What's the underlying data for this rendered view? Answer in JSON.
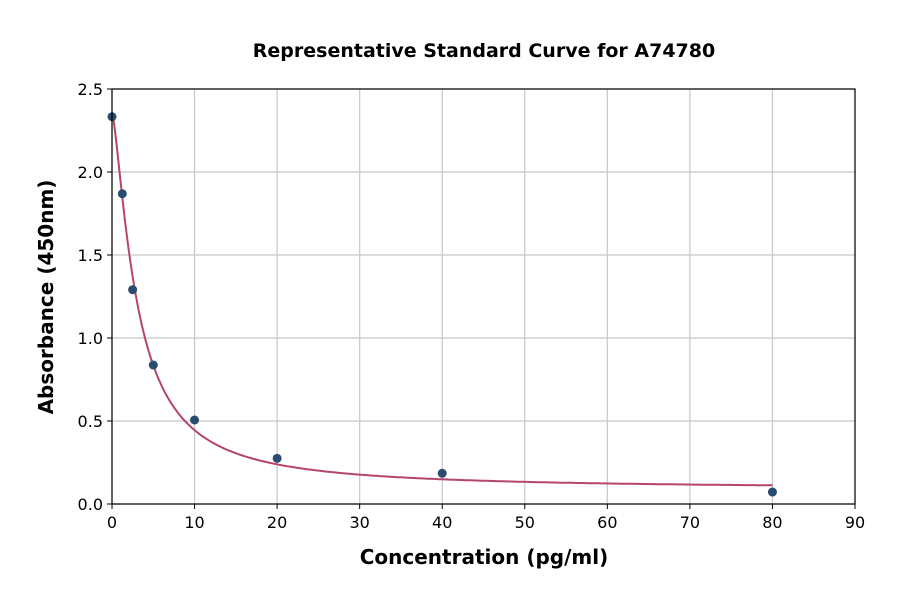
{
  "chart_data": {
    "type": "scatter",
    "title": "Representative Standard Curve for A74780",
    "xlabel": "Concentration (pg/ml)",
    "ylabel": "Absorbance (450nm)",
    "xlim": [
      0,
      90
    ],
    "ylim": [
      0,
      2.5
    ],
    "xticks": [
      "0",
      "10",
      "20",
      "30",
      "40",
      "50",
      "60",
      "70",
      "80",
      "90"
    ],
    "yticks": [
      "0.0",
      "0.5",
      "1.0",
      "1.5",
      "2.0",
      "2.5"
    ],
    "grid": true,
    "points": [
      {
        "x": 0,
        "y": 2.333
      },
      {
        "x": 1.25,
        "y": 1.869
      },
      {
        "x": 2.5,
        "y": 1.291
      },
      {
        "x": 5,
        "y": 0.837
      },
      {
        "x": 10,
        "y": 0.506
      },
      {
        "x": 20,
        "y": 0.275
      },
      {
        "x": 40,
        "y": 0.185
      },
      {
        "x": 80,
        "y": 0.072
      }
    ],
    "fit_line": true,
    "colors": {
      "points": "#2b4c6f",
      "curve": "#b5446e",
      "grid": "#c8c8c8"
    }
  }
}
